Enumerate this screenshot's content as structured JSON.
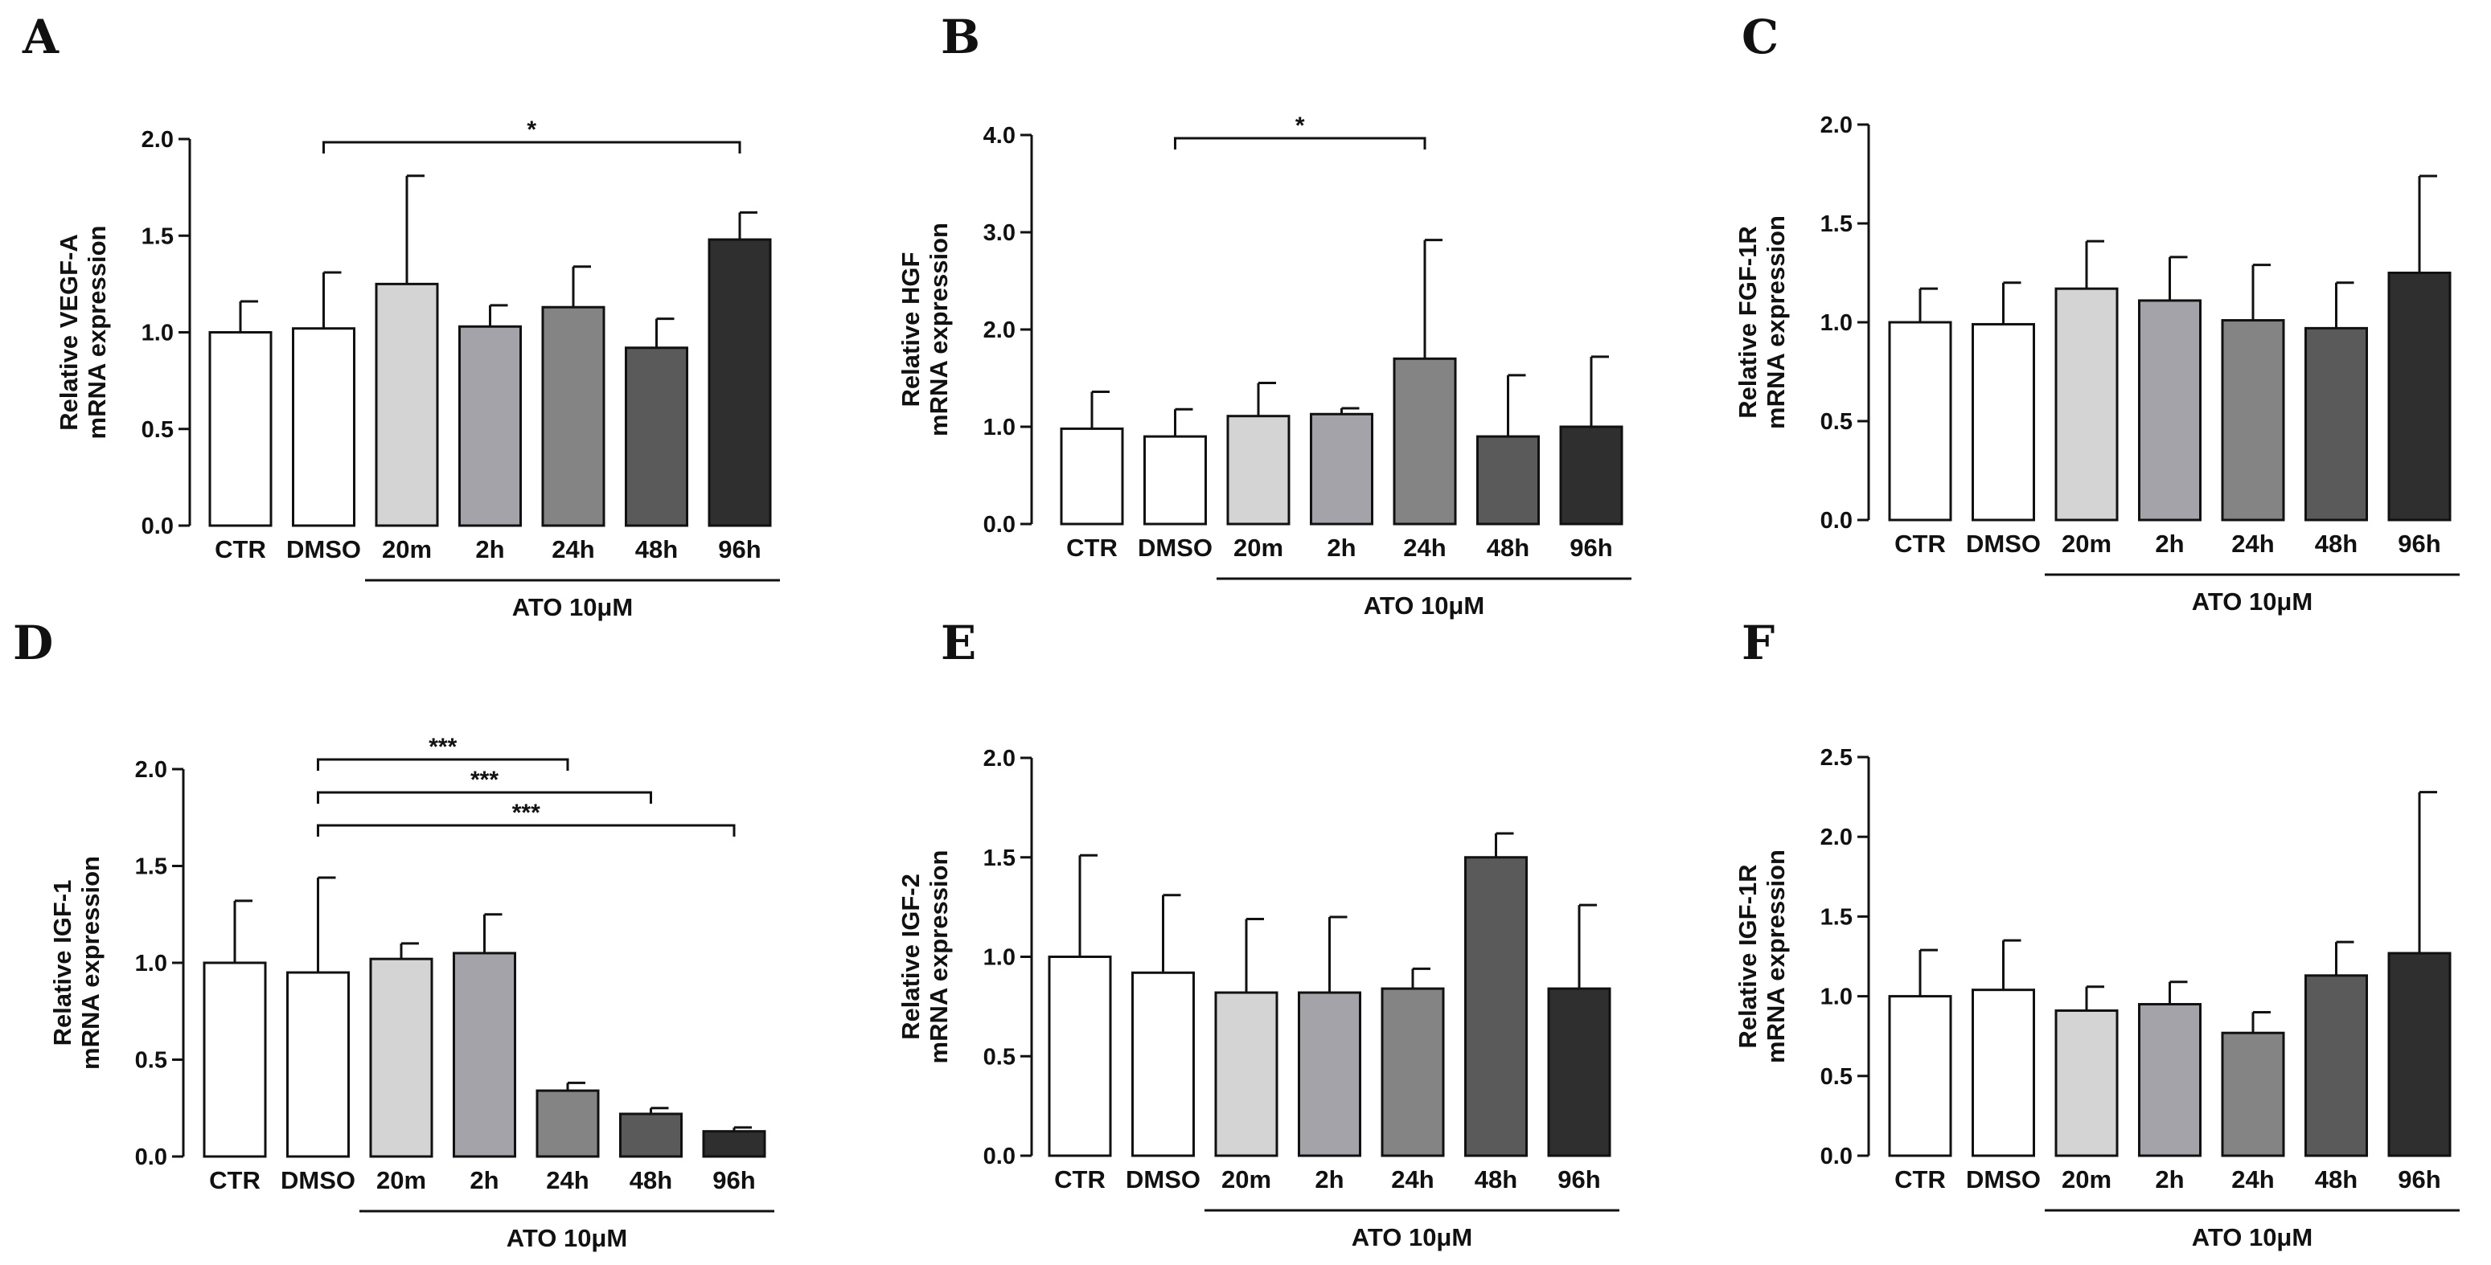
{
  "colors": {
    "CTR": "#ffffff",
    "DMSO": "#ffffff",
    "20m": "#d4d4d4",
    "2h": "#a3a3a9",
    "24h": "#848484",
    "48h": "#5a5a5a",
    "96h": "#2f2f2f",
    "stroke": "#111111"
  },
  "chart_data": [
    {
      "panel": "A",
      "type": "bar",
      "ylabel_line1": "Relative VEGF-A",
      "ylabel_line2": "mRNA expression",
      "ylim": [
        0,
        2.0
      ],
      "yticks": [
        0,
        0.5,
        1.0,
        1.5,
        2.0
      ],
      "ytick_labels": [
        "0.0",
        "0.5",
        "1.0",
        "1.5",
        "2.0"
      ],
      "categories": [
        "CTR",
        "DMSO",
        "20m",
        "2h",
        "24h",
        "48h",
        "96h"
      ],
      "values": [
        1.0,
        1.02,
        1.25,
        1.03,
        1.13,
        0.92,
        1.48
      ],
      "errors": [
        0.16,
        0.29,
        0.56,
        0.11,
        0.21,
        0.15,
        0.14
      ],
      "group_label": "ATO 10μM",
      "significance": [
        {
          "from": "DMSO",
          "to": "96h",
          "label": "*"
        }
      ]
    },
    {
      "panel": "B",
      "type": "bar",
      "ylabel_line1": "Relative HGF",
      "ylabel_line2": "mRNA expression",
      "ylim": [
        0,
        4.0
      ],
      "yticks": [
        0,
        1.0,
        2.0,
        3.0,
        4.0
      ],
      "ytick_labels": [
        "0.0",
        "1.0",
        "2.0",
        "3.0",
        "4.0"
      ],
      "categories": [
        "CTR",
        "DMSO",
        "20m",
        "2h",
        "24h",
        "48h",
        "96h"
      ],
      "values": [
        0.98,
        0.9,
        1.11,
        1.13,
        1.7,
        0.9,
        1.0
      ],
      "errors": [
        0.38,
        0.28,
        0.34,
        0.06,
        1.22,
        0.63,
        0.72
      ],
      "group_label": "ATO 10μM",
      "significance": [
        {
          "from": "DMSO",
          "to": "24h",
          "label": "*"
        }
      ]
    },
    {
      "panel": "C",
      "type": "bar",
      "ylabel_line1": "Relative FGF-1R",
      "ylabel_line2": "mRNA expression",
      "ylim": [
        0,
        2.0
      ],
      "yticks": [
        0,
        0.5,
        1.0,
        1.5,
        2.0
      ],
      "ytick_labels": [
        "0.0",
        "0.5",
        "1.0",
        "1.5",
        "2.0"
      ],
      "categories": [
        "CTR",
        "DMSO",
        "20m",
        "2h",
        "24h",
        "48h",
        "96h"
      ],
      "values": [
        1.0,
        0.99,
        1.17,
        1.11,
        1.01,
        0.97,
        1.25
      ],
      "errors": [
        0.17,
        0.21,
        0.24,
        0.22,
        0.28,
        0.23,
        0.49
      ],
      "group_label": "ATO 10μM",
      "significance": []
    },
    {
      "panel": "D",
      "type": "bar",
      "ylabel_line1": "Relative IGF-1",
      "ylabel_line2": "mRNA expression",
      "ylim": [
        0,
        2.0
      ],
      "yticks": [
        0,
        0.5,
        1.0,
        1.5,
        2.0
      ],
      "ytick_labels": [
        "0.0",
        "0.5",
        "1.0",
        "1.5",
        "2.0"
      ],
      "categories": [
        "CTR",
        "DMSO",
        "20m",
        "2h",
        "24h",
        "48h",
        "96h"
      ],
      "values": [
        1.0,
        0.95,
        1.02,
        1.05,
        0.34,
        0.22,
        0.13
      ],
      "errors": [
        0.32,
        0.49,
        0.08,
        0.2,
        0.04,
        0.03,
        0.02
      ],
      "group_label": "ATO 10μM",
      "significance": [
        {
          "from": "DMSO",
          "to": "24h",
          "label": "***"
        },
        {
          "from": "DMSO",
          "to": "48h",
          "label": "***"
        },
        {
          "from": "DMSO",
          "to": "96h",
          "label": "***"
        }
      ]
    },
    {
      "panel": "E",
      "type": "bar",
      "ylabel_line1": "Relative IGF-2",
      "ylabel_line2": "mRNA expression",
      "ylim": [
        0,
        2.0
      ],
      "yticks": [
        0,
        0.5,
        1.0,
        1.5,
        2.0
      ],
      "ytick_labels": [
        "0.0",
        "0.5",
        "1.0",
        "1.5",
        "2.0"
      ],
      "categories": [
        "CTR",
        "DMSO",
        "20m",
        "2h",
        "24h",
        "48h",
        "96h"
      ],
      "values": [
        1.0,
        0.92,
        0.82,
        0.82,
        0.84,
        1.5,
        0.84
      ],
      "errors": [
        0.51,
        0.39,
        0.37,
        0.38,
        0.1,
        0.12,
        0.42
      ],
      "group_label": "ATO 10μM",
      "significance": []
    },
    {
      "panel": "F",
      "type": "bar",
      "ylabel_line1": "Relative IGF-1R",
      "ylabel_line2": "mRNA expression",
      "ylim": [
        0,
        2.5
      ],
      "yticks": [
        0,
        0.5,
        1.0,
        1.5,
        2.0,
        2.5
      ],
      "ytick_labels": [
        "0.0",
        "0.5",
        "1.0",
        "1.5",
        "2.0",
        "2.5"
      ],
      "categories": [
        "CTR",
        "DMSO",
        "20m",
        "2h",
        "24h",
        "48h",
        "96h"
      ],
      "values": [
        1.0,
        1.04,
        0.91,
        0.95,
        0.77,
        1.13,
        1.27
      ],
      "errors": [
        0.29,
        0.31,
        0.15,
        0.14,
        0.13,
        0.21,
        1.01
      ],
      "group_label": "ATO 10μM",
      "significance": []
    }
  ]
}
